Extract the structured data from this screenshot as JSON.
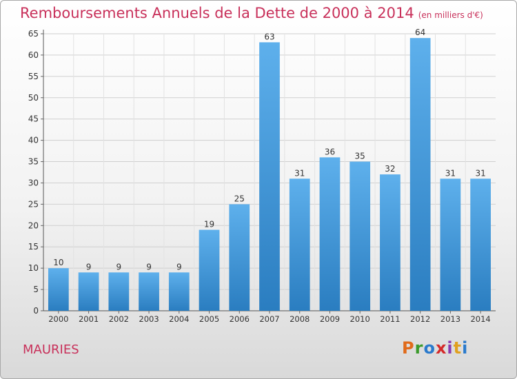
{
  "chart_data": {
    "type": "bar",
    "title": "Remboursements Annuels de la Dette de 2000 à 2014",
    "subtitle": "(en milliers d'€)",
    "categories": [
      "2000",
      "2001",
      "2002",
      "2003",
      "2004",
      "2005",
      "2006",
      "2007",
      "2008",
      "2009",
      "2010",
      "2011",
      "2012",
      "2013",
      "2014"
    ],
    "values": [
      10,
      9,
      9,
      9,
      9,
      19,
      25,
      63,
      31,
      36,
      35,
      32,
      64,
      31,
      31
    ],
    "ylim": [
      0,
      65
    ],
    "yticks": [
      0,
      5,
      10,
      15,
      20,
      25,
      30,
      35,
      40,
      45,
      50,
      55,
      60,
      65
    ],
    "grid": true,
    "bar_color_light": "#5eb0ec",
    "bar_color_dark": "#2a7dc0"
  },
  "footer": {
    "city": "MAURIES",
    "logo": "Proxiti",
    "logo_parts": [
      "P",
      "r",
      "o",
      "x",
      "i",
      "t",
      "i"
    ]
  }
}
